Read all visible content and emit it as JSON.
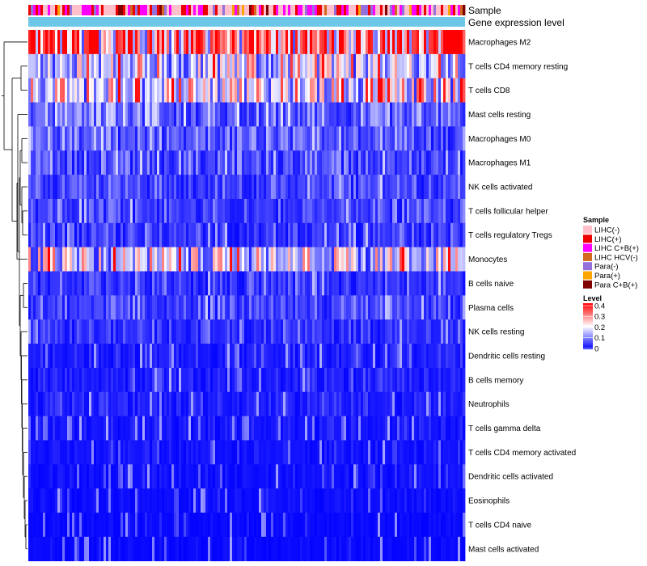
{
  "chart_data": {
    "type": "heatmap",
    "title": "",
    "annotation_tracks": [
      "Sample",
      "Gene expression level"
    ],
    "rows": [
      {
        "name": "Macrophages M2",
        "mean": 0.28
      },
      {
        "name": "T cells CD4 memory resting",
        "mean": 0.13
      },
      {
        "name": "T cells CD8",
        "mean": 0.15
      },
      {
        "name": "Mast cells resting",
        "mean": 0.07
      },
      {
        "name": "Macrophages M0",
        "mean": 0.06
      },
      {
        "name": "Macrophages M1",
        "mean": 0.05
      },
      {
        "name": "NK cells activated",
        "mean": 0.045
      },
      {
        "name": "T cells follicular helper",
        "mean": 0.045
      },
      {
        "name": "T cells regulatory  Tregs",
        "mean": 0.04
      },
      {
        "name": "Monocytes",
        "mean": 0.12
      },
      {
        "name": "B cells naive",
        "mean": 0.035
      },
      {
        "name": "Plasma cells",
        "mean": 0.045
      },
      {
        "name": "NK cells resting",
        "mean": 0.03
      },
      {
        "name": "Dendritic cells resting",
        "mean": 0.02
      },
      {
        "name": "B cells memory",
        "mean": 0.02
      },
      {
        "name": "Neutrophils",
        "mean": 0.02
      },
      {
        "name": "T cells gamma delta",
        "mean": 0.015
      },
      {
        "name": "T cells CD4 memory activated",
        "mean": 0.012
      },
      {
        "name": "Dendritic cells activated",
        "mean": 0.01
      },
      {
        "name": "Eosinophils",
        "mean": 0.008
      },
      {
        "name": "T cells CD4 naive",
        "mean": 0.006
      },
      {
        "name": "Mast cells activated",
        "mean": 0.006
      }
    ],
    "sample_legend": {
      "title": "Sample",
      "items": [
        {
          "label": "LIHC(-)",
          "color": "#ffc0cb"
        },
        {
          "label": "LIHC(+)",
          "color": "#ee0000"
        },
        {
          "label": "LIHC C+B(+)",
          "color": "#ff00ff"
        },
        {
          "label": "LIHC HCV(-)",
          "color": "#d2691e"
        },
        {
          "label": "Para(-)",
          "color": "#9370db"
        },
        {
          "label": "Para(+)",
          "color": "#ffa500"
        },
        {
          "label": "Para C+B(+)",
          "color": "#800000"
        }
      ]
    },
    "level_legend": {
      "title": "Level",
      "min": 0,
      "max": 0.4,
      "ticks": [
        "0.4",
        "0.3",
        "0.2",
        "0.1",
        "0"
      ],
      "colors": [
        "#0000ff",
        "#ffffff",
        "#ff0000"
      ]
    },
    "gene_expression_color": "#6ec6e8"
  }
}
